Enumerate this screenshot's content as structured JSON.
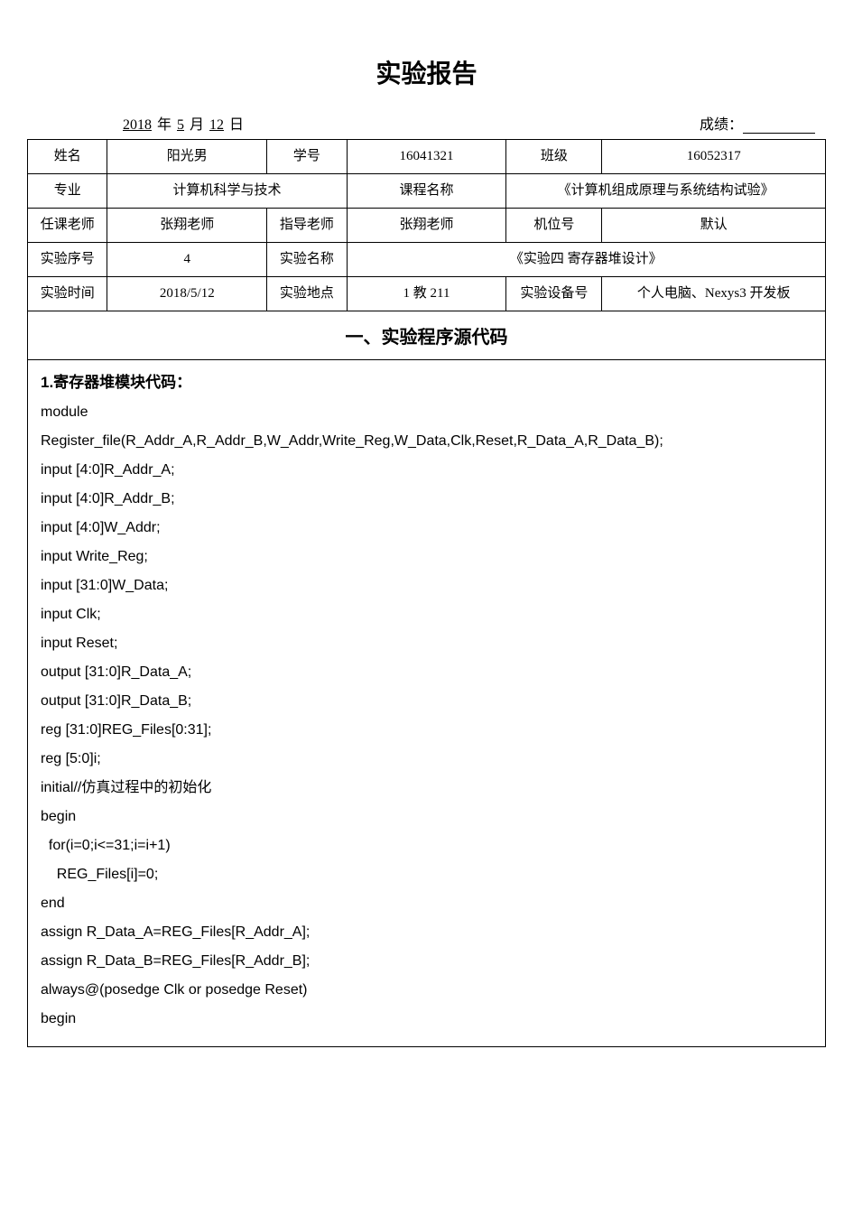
{
  "title": "实验报告",
  "dateLine": {
    "year": "2018",
    "yearLabel": "年",
    "month": "5",
    "monthLabel": "月",
    "day": "12",
    "dayLabel": "日",
    "gradeLabel": "成绩："
  },
  "info": {
    "row1": {
      "l1": "姓名",
      "v1": "阳光男",
      "l2": "学号",
      "v2": "16041321",
      "l3": "班级",
      "v3": "16052317"
    },
    "row2": {
      "l1": "专业",
      "v1": "计算机科学与技术",
      "l2": "课程名称",
      "v2": "《计算机组成原理与系统结构试验》"
    },
    "row3": {
      "l1": "任课老师",
      "v1": "张翔老师",
      "l2": "指导老师",
      "v2": "张翔老师",
      "l3": "机位号",
      "v3": "默认"
    },
    "row4": {
      "l1": "实验序号",
      "v1": "4",
      "l2": "实验名称",
      "v2": "《实验四 寄存器堆设计》"
    },
    "row5": {
      "l1": "实验时间",
      "v1": "2018/5/12",
      "l2": "实验地点",
      "v2": "1 教 211",
      "l3": "实验设备号",
      "v3": "个人电脑、Nexys3 开发板"
    }
  },
  "sectionTitle": "一、实验程序源代码",
  "code": {
    "heading": "1.寄存器堆模块代码：",
    "body": "module\nRegister_file(R_Addr_A,R_Addr_B,W_Addr,Write_Reg,W_Data,Clk,Reset,R_Data_A,R_Data_B);\ninput [4:0]R_Addr_A;\ninput [4:0]R_Addr_B;\ninput [4:0]W_Addr;\ninput Write_Reg;\ninput [31:0]W_Data;\ninput Clk;\ninput Reset;\noutput [31:0]R_Data_A;\noutput [31:0]R_Data_B;\nreg [31:0]REG_Files[0:31];\nreg [5:0]i;\ninitial//仿真过程中的初始化\nbegin\n  for(i=0;i<=31;i=i+1)\n    REG_Files[i]=0;\nend\nassign R_Data_A=REG_Files[R_Addr_A];\nassign R_Data_B=REG_Files[R_Addr_B];\nalways@(posedge Clk or posedge Reset)\nbegin"
  }
}
